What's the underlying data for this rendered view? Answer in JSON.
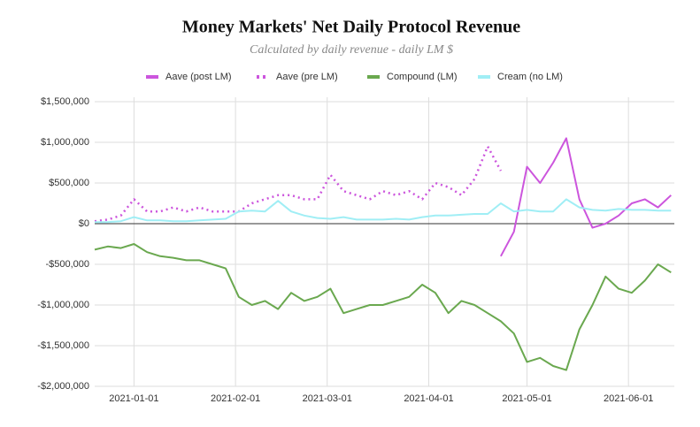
{
  "chart_data": {
    "type": "line",
    "title": "Money Markets' Net Daily Protocol Revenue",
    "subtitle": "Calculated by daily revenue - daily LM $",
    "x": [
      "2020-12-20",
      "2020-12-24",
      "2020-12-28",
      "2021-01-01",
      "2021-01-05",
      "2021-01-09",
      "2021-01-13",
      "2021-01-17",
      "2021-01-21",
      "2021-01-25",
      "2021-01-29",
      "2021-02-02",
      "2021-02-06",
      "2021-02-10",
      "2021-02-14",
      "2021-02-18",
      "2021-02-22",
      "2021-02-26",
      "2021-03-02",
      "2021-03-06",
      "2021-03-10",
      "2021-03-14",
      "2021-03-18",
      "2021-03-22",
      "2021-03-26",
      "2021-03-30",
      "2021-04-03",
      "2021-04-07",
      "2021-04-11",
      "2021-04-15",
      "2021-04-19",
      "2021-04-23",
      "2021-04-27",
      "2021-05-01",
      "2021-05-05",
      "2021-05-09",
      "2021-05-13",
      "2021-05-17",
      "2021-05-21",
      "2021-05-25",
      "2021-05-29",
      "2021-06-02",
      "2021-06-06",
      "2021-06-10",
      "2021-06-14"
    ],
    "series": [
      {
        "name": "Aave (post LM)",
        "color": "#cc55dd",
        "style": "solid",
        "values": [
          null,
          null,
          null,
          null,
          null,
          null,
          null,
          null,
          null,
          null,
          null,
          null,
          null,
          null,
          null,
          null,
          null,
          null,
          null,
          null,
          null,
          null,
          null,
          null,
          null,
          null,
          null,
          null,
          null,
          null,
          null,
          -400000,
          -100000,
          700000,
          500000,
          750000,
          1050000,
          300000,
          -50000,
          0,
          100000,
          250000,
          300000,
          200000,
          350000
        ]
      },
      {
        "name": "Aave (pre LM)",
        "color": "#cc55dd",
        "style": "dotted",
        "values": [
          30000,
          50000,
          100000,
          300000,
          150000,
          150000,
          200000,
          150000,
          200000,
          150000,
          150000,
          150000,
          250000,
          300000,
          350000,
          350000,
          300000,
          300000,
          600000,
          400000,
          350000,
          300000,
          400000,
          350000,
          400000,
          300000,
          500000,
          450000,
          350000,
          550000,
          950000,
          650000,
          null,
          null,
          null,
          null,
          null,
          null,
          null,
          null,
          null,
          null,
          null,
          null,
          null
        ]
      },
      {
        "name": "Compound (LM)",
        "color": "#6aa84f",
        "style": "solid",
        "values": [
          -320000,
          -280000,
          -300000,
          -250000,
          -350000,
          -400000,
          -420000,
          -450000,
          -450000,
          -500000,
          -550000,
          -900000,
          -1000000,
          -950000,
          -1050000,
          -850000,
          -950000,
          -900000,
          -800000,
          -1100000,
          -1050000,
          -1000000,
          -1000000,
          -950000,
          -900000,
          -750000,
          -850000,
          -1100000,
          -950000,
          -1000000,
          -1100000,
          -1200000,
          -1350000,
          -1700000,
          -1650000,
          -1750000,
          -1800000,
          -1300000,
          -1000000,
          -650000,
          -800000,
          -850000,
          -700000,
          -500000,
          -600000
        ]
      },
      {
        "name": "Cream (no LM)",
        "color": "#a0eef5",
        "style": "solid",
        "values": [
          20000,
          20000,
          30000,
          80000,
          40000,
          40000,
          30000,
          30000,
          40000,
          50000,
          60000,
          150000,
          160000,
          150000,
          280000,
          150000,
          100000,
          70000,
          60000,
          80000,
          50000,
          50000,
          50000,
          60000,
          50000,
          80000,
          100000,
          100000,
          110000,
          120000,
          120000,
          250000,
          150000,
          170000,
          150000,
          150000,
          300000,
          200000,
          170000,
          160000,
          180000,
          170000,
          170000,
          160000,
          160000
        ]
      }
    ],
    "xlim": [
      "2020-12-20",
      "2021-06-15"
    ],
    "xticks": [
      "2021-01-01",
      "2021-02-01",
      "2021-03-01",
      "2021-04-01",
      "2021-05-01",
      "2021-06-01"
    ],
    "ylim": [
      -2000000,
      1500000
    ],
    "yticks": [
      {
        "value": -2000000,
        "label": "-$2,000,000"
      },
      {
        "value": -1500000,
        "label": "-$1,500,000"
      },
      {
        "value": -1000000,
        "label": "-$1,000,000"
      },
      {
        "value": -500000,
        "label": "-$500,000"
      },
      {
        "value": 0,
        "label": "$0"
      },
      {
        "value": 500000,
        "label": "$500,000"
      },
      {
        "value": 1000000,
        "label": "$1,000,000"
      },
      {
        "value": 1500000,
        "label": "$1,500,000"
      }
    ],
    "grid": true,
    "legend": "top"
  }
}
